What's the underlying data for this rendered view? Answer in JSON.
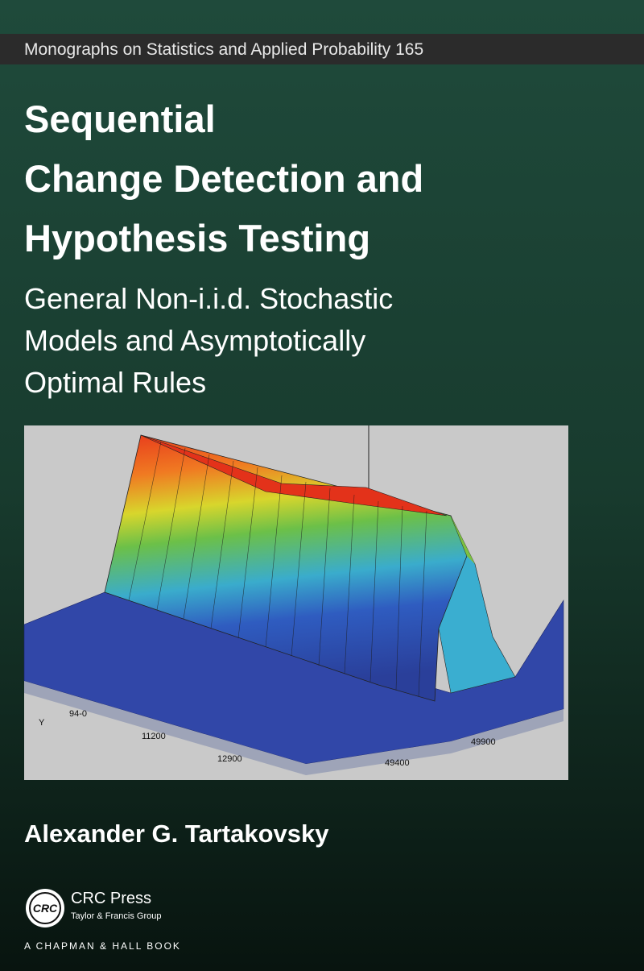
{
  "series": "Monographs on Statistics and Applied Probability 165",
  "title": {
    "lines": [
      "Sequential",
      "Change Detection and",
      "Hypothesis Testing"
    ]
  },
  "subtitle": {
    "lines": [
      "General Non-i.i.d. Stochastic",
      "Models and Asymptotically",
      "Optimal Rules"
    ]
  },
  "figure": {
    "labels": [
      "94-0",
      "Y",
      "11200",
      "12900",
      "49400",
      "49900"
    ]
  },
  "author": "Alexander G. Tartakovsky",
  "publisher": {
    "logo": "CRC",
    "name": "CRC Press",
    "group": "Taylor & Francis Group",
    "imprint": "A CHAPMAN & HALL BOOK"
  }
}
